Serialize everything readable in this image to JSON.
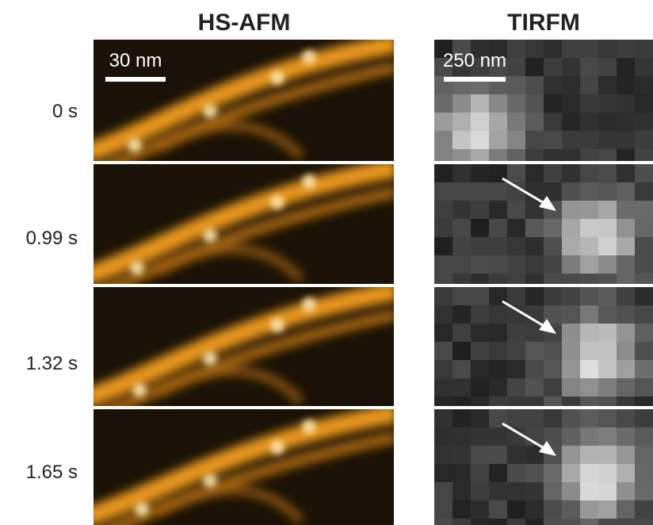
{
  "header": {
    "titles": [
      "HS-AFM",
      "TIRFM"
    ]
  },
  "rows": [
    {
      "label": "0 s"
    },
    {
      "label": "0.99 s"
    },
    {
      "label": "1.32 s"
    },
    {
      "label": "1.65 s"
    }
  ],
  "scale_bars": {
    "afm": "30 nm",
    "tirfm": "250 nm"
  }
}
